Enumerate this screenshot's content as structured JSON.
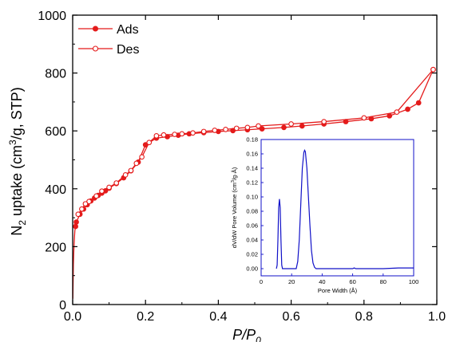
{
  "colors": {
    "main_series": "#e41b1b",
    "inset_series": "#1010c8",
    "axes": "#000000"
  },
  "chart_data": [
    {
      "type": "line",
      "xlabel_italic": "P/P",
      "xlabel_sub": "0",
      "ylabel_pre": "N",
      "ylabel_sub": "2",
      "ylabel_mid": " uptake (cm",
      "ylabel_sup": "3",
      "ylabel_post": "/g, STP)",
      "xlim": [
        0.0,
        1.0
      ],
      "ylim": [
        0,
        1000
      ],
      "x_ticks": [
        "0.0",
        "0.2",
        "0.4",
        "0.6",
        "0.8",
        "1.0"
      ],
      "y_ticks": [
        "0",
        "200",
        "400",
        "600",
        "800",
        "1000"
      ],
      "legend_position": "top-left",
      "series": [
        {
          "name": "Ads",
          "marker": "filled-circle",
          "x": [
            0.0005,
            0.001,
            0.0015,
            0.002,
            0.003,
            0.004,
            0.005,
            0.006,
            0.008,
            0.01,
            0.02,
            0.03,
            0.04,
            0.05,
            0.06,
            0.07,
            0.08,
            0.09,
            0.1,
            0.12,
            0.14,
            0.16,
            0.18,
            0.2,
            0.23,
            0.26,
            0.29,
            0.32,
            0.36,
            0.4,
            0.44,
            0.48,
            0.52,
            0.58,
            0.63,
            0.69,
            0.75,
            0.82,
            0.87,
            0.92,
            0.95,
            0.99
          ],
          "y": [
            20,
            60,
            100,
            140,
            180,
            210,
            235,
            255,
            270,
            285,
            312,
            330,
            345,
            358,
            368,
            377,
            385,
            393,
            402,
            418,
            438,
            462,
            492,
            552,
            575,
            580,
            585,
            590,
            594,
            598,
            601,
            604,
            607,
            612,
            617,
            624,
            632,
            642,
            652,
            675,
            697,
            812
          ]
        },
        {
          "name": "Des",
          "marker": "open-circle",
          "x": [
            0.99,
            0.89,
            0.8,
            0.69,
            0.6,
            0.51,
            0.48,
            0.45,
            0.42,
            0.39,
            0.36,
            0.33,
            0.3,
            0.28,
            0.25,
            0.23,
            0.21,
            0.19,
            0.175,
            0.16,
            0.145,
            0.12,
            0.1,
            0.08,
            0.065,
            0.045,
            0.035,
            0.025,
            0.015
          ],
          "y": [
            812,
            665,
            645,
            632,
            624,
            617,
            612,
            609,
            605,
            602,
            598,
            593,
            590,
            588,
            586,
            583,
            560,
            510,
            488,
            463,
            448,
            420,
            405,
            392,
            375,
            356,
            348,
            330,
            312
          ]
        }
      ]
    },
    {
      "type": "line",
      "xlabel": "Pore Width (Å)",
      "ylabel_pre": "dV/dW Pore Volume (cm",
      "ylabel_sup": "3",
      "ylabel_post": "/g·Å)",
      "xlim": [
        0,
        100
      ],
      "ylim": [
        -0.01,
        0.18
      ],
      "x_ticks": [
        "0",
        "20",
        "40",
        "60",
        "80",
        "100"
      ],
      "y_ticks": [
        "0.00",
        "0.02",
        "0.04",
        "0.06",
        "0.08",
        "0.10",
        "0.12",
        "0.14",
        "0.16",
        "0.18"
      ],
      "series": [
        {
          "x": [
            10,
            10.5,
            11,
            11.5,
            12,
            12.5,
            13,
            13.5,
            14,
            15,
            20,
            23,
            24,
            25,
            26,
            27,
            28,
            28.5,
            29,
            30,
            31,
            32,
            33,
            34,
            35,
            36,
            40,
            50,
            60,
            61,
            62,
            70,
            80,
            90,
            100
          ],
          "y": [
            0.0,
            0.005,
            0.04,
            0.085,
            0.097,
            0.085,
            0.04,
            0.005,
            0.0,
            0.0,
            0.0,
            0.0,
            0.01,
            0.04,
            0.09,
            0.14,
            0.162,
            0.165,
            0.163,
            0.14,
            0.1,
            0.06,
            0.025,
            0.008,
            0.002,
            0.0,
            0.0,
            0.0,
            0.0,
            0.001,
            0.0,
            0.0,
            0.0,
            0.001,
            0.001
          ]
        }
      ]
    }
  ]
}
